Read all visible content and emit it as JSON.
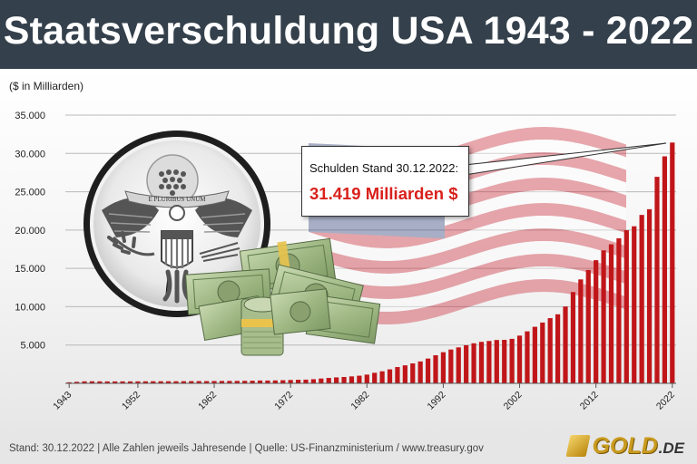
{
  "header": {
    "title": "Staatsverschuldung USA 1943 - 2022"
  },
  "unit_label": "($ in Milliarden)",
  "callout": {
    "label": "Schulden Stand 30.12.2022:",
    "value": "31.419 Milliarden $"
  },
  "footer": {
    "text": "Stand: 30.12.2022 |  Alle Zahlen jeweils Jahresende  |  Quelle: US-Finanzministerium / www.treasury.gov"
  },
  "logo": {
    "text": "GOLD",
    "tld": ".DE"
  },
  "illustration": {
    "seal_banner": "E PLURIBUS UNUM"
  },
  "colors": {
    "header_bg": "#34404b",
    "bar": "#c0161a",
    "callout_value": "#d9211c",
    "logo": "#c99a1e"
  },
  "chart_data": {
    "type": "bar",
    "ylabel": "($ in Milliarden)",
    "ylim": [
      0,
      35000
    ],
    "y_ticks": [
      "5.000",
      "10.000",
      "15.000",
      "20.000",
      "25.000",
      "30.000",
      "35.000"
    ],
    "x_tick_labels": [
      "1943",
      "1952",
      "1962",
      "1972",
      "1982",
      "1992",
      "2002",
      "2012",
      "2022"
    ],
    "grid": true,
    "categories": [
      1943,
      1944,
      1945,
      1946,
      1947,
      1948,
      1949,
      1950,
      1951,
      1952,
      1953,
      1954,
      1955,
      1956,
      1957,
      1958,
      1959,
      1960,
      1961,
      1962,
      1963,
      1964,
      1965,
      1966,
      1967,
      1968,
      1969,
      1970,
      1971,
      1972,
      1973,
      1974,
      1975,
      1976,
      1977,
      1978,
      1979,
      1980,
      1981,
      1982,
      1983,
      1984,
      1985,
      1986,
      1987,
      1988,
      1989,
      1990,
      1991,
      1992,
      1993,
      1994,
      1995,
      1996,
      1997,
      1998,
      1999,
      2000,
      2001,
      2002,
      2003,
      2004,
      2005,
      2006,
      2007,
      2008,
      2009,
      2010,
      2011,
      2012,
      2013,
      2014,
      2015,
      2016,
      2017,
      2018,
      2019,
      2020,
      2021,
      2022
    ],
    "values": [
      137,
      201,
      259,
      269,
      258,
      252,
      253,
      257,
      255,
      259,
      266,
      271,
      274,
      273,
      272,
      280,
      287,
      291,
      293,
      303,
      310,
      316,
      322,
      328,
      341,
      369,
      366,
      381,
      408,
      436,
      466,
      483,
      541,
      629,
      706,
      776,
      829,
      908,
      998,
      1142,
      1377,
      1572,
      1823,
      2125,
      2350,
      2602,
      2857,
      3233,
      3665,
      4065,
      4411,
      4693,
      4974,
      5225,
      5413,
      5526,
      5656,
      5674,
      5807,
      6228,
      6783,
      7379,
      7933,
      8507,
      9008,
      10025,
      11910,
      13562,
      14790,
      16066,
      17352,
      18141,
      18922,
      19977,
      20493,
      21974,
      22719,
      26945,
      29617,
      31419
    ],
    "annotation": {
      "label": "Schulden Stand 30.12.2022:",
      "value": "31.419 Milliarden $"
    }
  }
}
